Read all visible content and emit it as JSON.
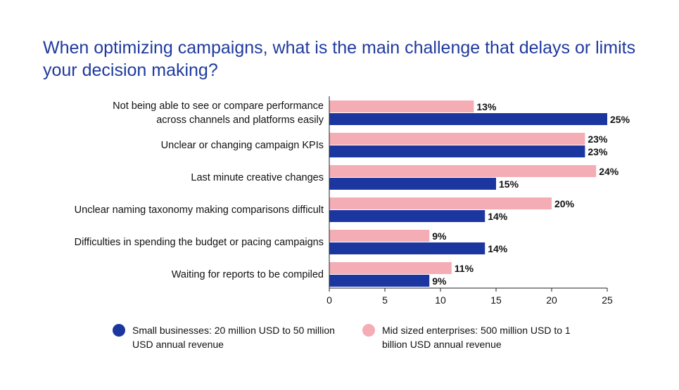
{
  "chart_data": {
    "type": "bar",
    "orientation": "horizontal",
    "title": "When optimizing campaigns, what is the main challenge that delays or limits your decision making?",
    "categories": [
      "Not being able to see or compare performance across channels and platforms easily",
      "Unclear or changing campaign KPIs",
      "Last minute creative changes",
      "Unclear naming taxonomy making comparisons difficult",
      "Difficulties in spending the budget or pacing campaigns",
      "Waiting for reports to be compiled"
    ],
    "category_lines": [
      [
        "Not being able to see or compare performance",
        "across channels and platforms easily"
      ],
      [
        "Unclear or changing campaign KPIs"
      ],
      [
        "Last minute creative changes"
      ],
      [
        "Unclear naming taxonomy making comparisons difficult"
      ],
      [
        "Difficulties in spending the budget or pacing campaigns"
      ],
      [
        "Waiting for reports to be compiled"
      ]
    ],
    "series": [
      {
        "name": "Mid sized enterprises: 500 million USD to 1 billion USD annual revenue",
        "color": "#f4adb5",
        "values": [
          13,
          23,
          24,
          20,
          9,
          11
        ],
        "labels": [
          "13%",
          "23%",
          "24%",
          "20%",
          "9%",
          "11%"
        ]
      },
      {
        "name": "Small businesses: 20 million USD to 50 million USD annual revenue",
        "color": "#1c36a0",
        "values": [
          25,
          23,
          15,
          14,
          14,
          9
        ],
        "labels": [
          "25%",
          "23%",
          "15%",
          "14%",
          "14%",
          "9%"
        ]
      }
    ],
    "x_ticks": [
      0,
      5,
      10,
      15,
      20,
      25
    ],
    "x_tick_labels": [
      "0",
      "5",
      "10",
      "15",
      "20",
      "25"
    ],
    "xlim": [
      0,
      25
    ],
    "grid": false,
    "legend_position": "bottom"
  },
  "legend": [
    {
      "text": "Small businesses: 20 million USD to 50 million USD annual revenue",
      "color": "#1c36a0"
    },
    {
      "text": "Mid sized enterprises: 500 million USD to 1 billion USD annual revenue",
      "color": "#f4adb5"
    }
  ]
}
